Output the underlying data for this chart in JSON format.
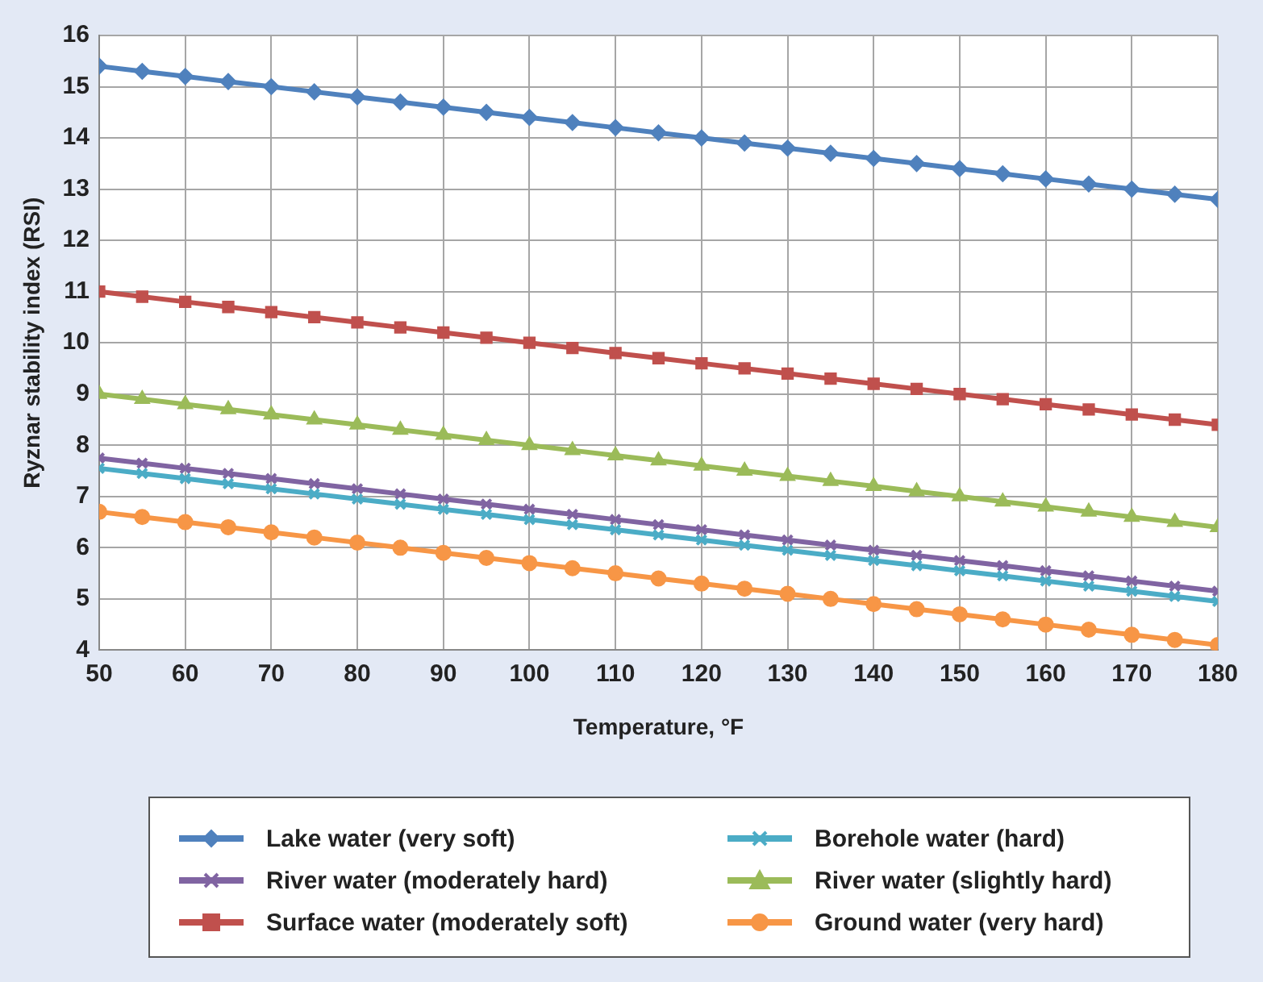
{
  "chart_data": {
    "type": "line",
    "xlabel": "Temperature, °F",
    "ylabel": "Ryznar stability index (RSI)",
    "x": [
      50,
      55,
      60,
      65,
      70,
      75,
      80,
      85,
      90,
      95,
      100,
      105,
      110,
      115,
      120,
      125,
      130,
      135,
      140,
      145,
      150,
      155,
      160,
      165,
      170,
      175,
      180
    ],
    "xlim": [
      50,
      180
    ],
    "xticks": [
      50,
      60,
      70,
      80,
      90,
      100,
      110,
      120,
      130,
      140,
      150,
      160,
      170,
      180
    ],
    "ylim": [
      4,
      16
    ],
    "yticks": [
      4,
      5,
      6,
      7,
      8,
      9,
      10,
      11,
      12,
      13,
      14,
      15,
      16
    ],
    "grid": true,
    "legend": "bottom",
    "line_style": "solid",
    "series": [
      {
        "name": "Lake water (very soft)",
        "color": "#4f81bd",
        "marker": "diamond",
        "values": [
          15.4,
          15.3,
          15.2,
          15.1,
          15.0,
          14.9,
          14.8,
          14.7,
          14.6,
          14.5,
          14.4,
          14.3,
          14.2,
          14.1,
          14.0,
          13.9,
          13.8,
          13.7,
          13.6,
          13.5,
          13.4,
          13.3,
          13.2,
          13.1,
          13.0,
          12.9,
          12.8
        ]
      },
      {
        "name": "Borehole water (hard)",
        "color": "#4bacc6",
        "marker": "cross",
        "values": [
          7.55,
          7.45,
          7.35,
          7.25,
          7.15,
          7.05,
          6.95,
          6.85,
          6.75,
          6.65,
          6.55,
          6.45,
          6.35,
          6.25,
          6.15,
          6.05,
          5.95,
          5.85,
          5.75,
          5.65,
          5.55,
          5.45,
          5.35,
          5.25,
          5.15,
          5.05,
          4.95
        ]
      },
      {
        "name": "River water (moderately hard)",
        "color": "#8064a2",
        "marker": "cross",
        "values": [
          7.75,
          7.65,
          7.55,
          7.45,
          7.35,
          7.25,
          7.15,
          7.05,
          6.95,
          6.85,
          6.75,
          6.65,
          6.55,
          6.45,
          6.35,
          6.25,
          6.15,
          6.05,
          5.95,
          5.85,
          5.75,
          5.65,
          5.55,
          5.45,
          5.35,
          5.25,
          5.15
        ]
      },
      {
        "name": "River water (slightly hard)",
        "color": "#9bbb59",
        "marker": "triangle",
        "values": [
          9.0,
          8.9,
          8.8,
          8.7,
          8.6,
          8.5,
          8.4,
          8.3,
          8.2,
          8.1,
          8.0,
          7.9,
          7.8,
          7.7,
          7.6,
          7.5,
          7.4,
          7.3,
          7.2,
          7.1,
          7.0,
          6.9,
          6.8,
          6.7,
          6.6,
          6.5,
          6.4
        ]
      },
      {
        "name": "Surface water (moderately soft)",
        "color": "#c0504d",
        "marker": "square",
        "values": [
          11.0,
          10.9,
          10.8,
          10.7,
          10.6,
          10.5,
          10.4,
          10.3,
          10.2,
          10.1,
          10.0,
          9.9,
          9.8,
          9.7,
          9.6,
          9.5,
          9.4,
          9.3,
          9.2,
          9.1,
          9.0,
          8.9,
          8.8,
          8.7,
          8.6,
          8.5,
          8.4
        ]
      },
      {
        "name": "Ground water (very hard)",
        "color": "#f79646",
        "marker": "circle",
        "values": [
          6.7,
          6.6,
          6.5,
          6.4,
          6.3,
          6.2,
          6.1,
          6.0,
          5.9,
          5.8,
          5.7,
          5.6,
          5.5,
          5.4,
          5.3,
          5.2,
          5.1,
          5.0,
          4.9,
          4.8,
          4.7,
          4.6,
          4.5,
          4.4,
          4.3,
          4.2,
          4.1
        ]
      }
    ]
  }
}
